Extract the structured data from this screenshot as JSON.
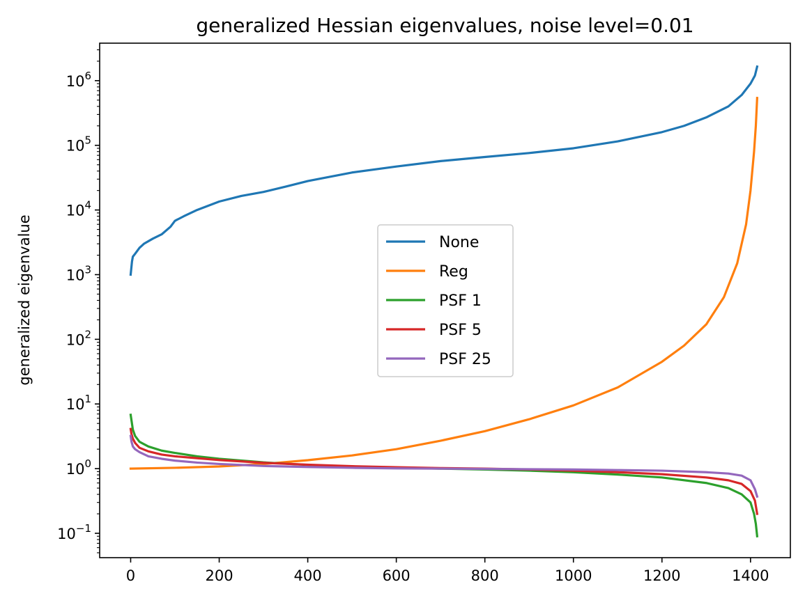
{
  "chart_data": {
    "type": "line",
    "title": "generalized Hessian eigenvalues, noise level=0.01",
    "xlabel": "",
    "ylabel": "generalized eigenvalue",
    "yscale": "log",
    "xlim": [
      -70,
      1490
    ],
    "ylim": [
      0.042,
      3800000
    ],
    "xticks": [
      0,
      200,
      400,
      600,
      800,
      1000,
      1200,
      1400
    ],
    "yticks": [
      {
        "value": 0.1,
        "base": "10",
        "exp": "−1"
      },
      {
        "value": 1,
        "base": "10",
        "exp": "0"
      },
      {
        "value": 10,
        "base": "10",
        "exp": "1"
      },
      {
        "value": 100,
        "base": "10",
        "exp": "2"
      },
      {
        "value": 1000,
        "base": "10",
        "exp": "3"
      },
      {
        "value": 10000,
        "base": "10",
        "exp": "4"
      },
      {
        "value": 100000,
        "base": "10",
        "exp": "5"
      },
      {
        "value": 1000000,
        "base": "10",
        "exp": "6"
      }
    ],
    "grid": false,
    "legend": {
      "position": "center"
    },
    "series": [
      {
        "name": "None",
        "color": "#1f77b4",
        "x": [
          0,
          3,
          5,
          10,
          20,
          30,
          50,
          70,
          90,
          100,
          120,
          150,
          200,
          250,
          300,
          350,
          400,
          500,
          600,
          700,
          800,
          900,
          1000,
          1100,
          1200,
          1250,
          1300,
          1350,
          1380,
          1400,
          1410,
          1415
        ],
        "y": [
          1000,
          1600,
          1900,
          2100,
          2600,
          3000,
          3600,
          4200,
          5500,
          6800,
          8000,
          10000,
          13500,
          16500,
          19000,
          23000,
          28000,
          38000,
          47000,
          57000,
          66000,
          76000,
          90000,
          115000,
          160000,
          200000,
          270000,
          400000,
          600000,
          900000,
          1200000,
          1650000
        ]
      },
      {
        "name": "Reg",
        "color": "#ff7f0e",
        "x": [
          0,
          100,
          200,
          300,
          400,
          500,
          600,
          700,
          800,
          900,
          1000,
          1100,
          1200,
          1250,
          1300,
          1340,
          1370,
          1390,
          1400,
          1408,
          1412,
          1415
        ],
        "y": [
          1.0,
          1.03,
          1.08,
          1.18,
          1.35,
          1.6,
          2.0,
          2.7,
          3.8,
          5.8,
          9.5,
          18,
          45,
          80,
          170,
          450,
          1500,
          6000,
          20000,
          80000,
          200000,
          540000
        ]
      },
      {
        "name": "PSF 1",
        "color": "#2ca02c",
        "x": [
          0,
          2,
          5,
          10,
          20,
          40,
          70,
          100,
          150,
          200,
          300,
          400,
          500,
          600,
          700,
          800,
          900,
          1000,
          1100,
          1200,
          1300,
          1350,
          1380,
          1400,
          1408,
          1412,
          1415
        ],
        "y": [
          6.8,
          5.5,
          4.0,
          3.2,
          2.6,
          2.2,
          1.9,
          1.75,
          1.55,
          1.42,
          1.25,
          1.14,
          1.08,
          1.03,
          1.0,
          0.97,
          0.93,
          0.88,
          0.81,
          0.73,
          0.6,
          0.5,
          0.4,
          0.3,
          0.2,
          0.14,
          0.09
        ]
      },
      {
        "name": "PSF 5",
        "color": "#d62728",
        "x": [
          0,
          2,
          5,
          10,
          20,
          40,
          70,
          100,
          150,
          200,
          300,
          400,
          500,
          600,
          700,
          800,
          900,
          1000,
          1100,
          1200,
          1300,
          1350,
          1380,
          1400,
          1410,
          1415
        ],
        "y": [
          4.1,
          3.4,
          2.9,
          2.5,
          2.1,
          1.85,
          1.65,
          1.55,
          1.45,
          1.36,
          1.23,
          1.15,
          1.09,
          1.05,
          1.02,
          1.0,
          0.97,
          0.93,
          0.88,
          0.82,
          0.73,
          0.66,
          0.58,
          0.45,
          0.32,
          0.2
        ]
      },
      {
        "name": "PSF 25",
        "color": "#9467bd",
        "x": [
          0,
          2,
          5,
          10,
          20,
          40,
          70,
          100,
          150,
          200,
          300,
          400,
          500,
          600,
          700,
          800,
          900,
          1000,
          1100,
          1200,
          1300,
          1350,
          1380,
          1400,
          1410,
          1415
        ],
        "y": [
          3.2,
          2.6,
          2.2,
          2.0,
          1.8,
          1.55,
          1.42,
          1.33,
          1.24,
          1.18,
          1.1,
          1.06,
          1.03,
          1.01,
          1.0,
          0.99,
          0.98,
          0.97,
          0.95,
          0.93,
          0.88,
          0.84,
          0.78,
          0.66,
          0.48,
          0.37
        ]
      }
    ]
  }
}
